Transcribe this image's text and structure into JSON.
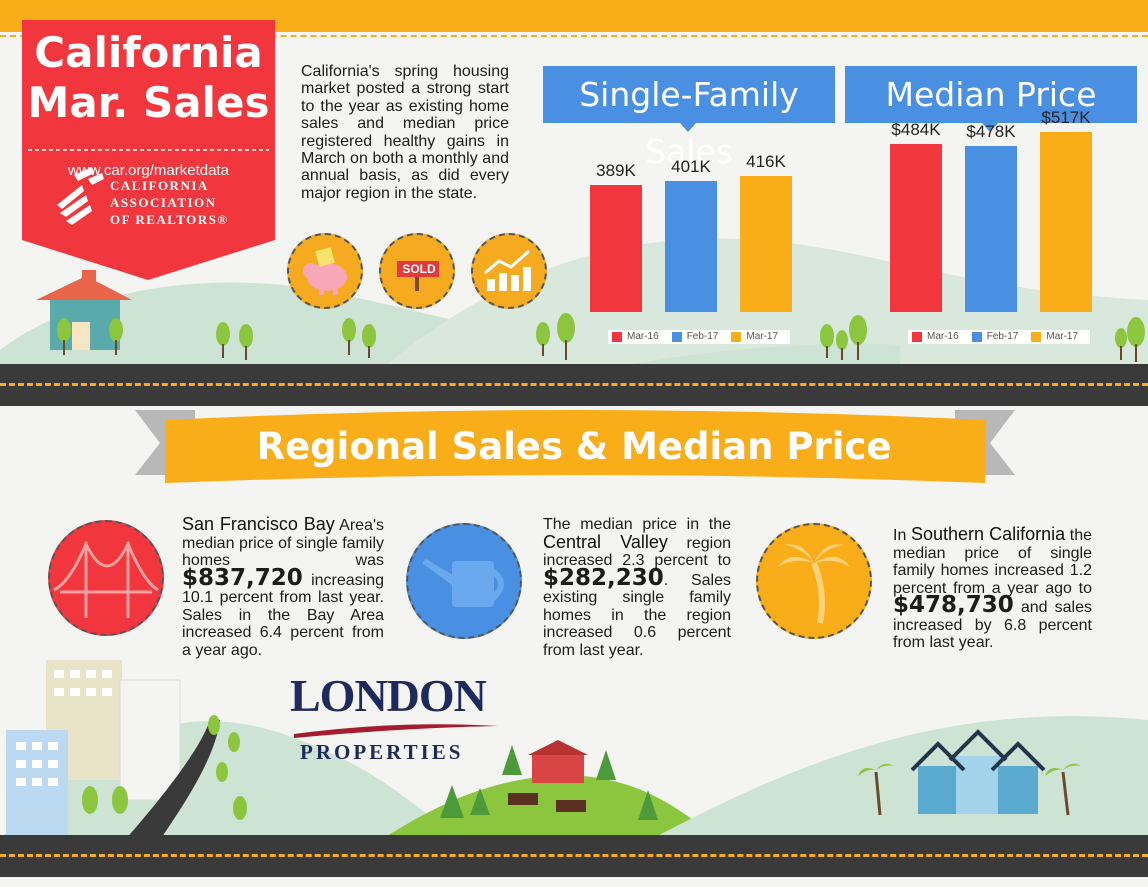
{
  "header": {
    "title_line1": "California",
    "title_line2": "Mar. Sales",
    "url": "www.car.org/marketdata",
    "org_line1": "CALIFORNIA",
    "org_line2": "ASSOCIATION",
    "org_line3": "OF REALTORS®"
  },
  "intro": "California's spring housing market posted a strong start to the year as existing home sales and median price registered healthy gains in March on both a monthly and annual basis, as did every major region in the state.",
  "icons": {
    "sold_sign": "SOLD",
    "names": [
      "piggy-bank-icon",
      "sold-sign-icon",
      "growth-chart-icon",
      "golden-gate-bridge-icon",
      "watering-can-icon",
      "palm-tree-icon"
    ]
  },
  "chart_data": [
    {
      "type": "bar",
      "title": "Single-Family Sales",
      "categories": [
        "Mar-16",
        "Feb-17",
        "Mar-17"
      ],
      "values": [
        389,
        401,
        416
      ],
      "labels": [
        "389K",
        "401K",
        "416K"
      ],
      "colors": [
        "#f2363e",
        "#4a90e2",
        "#f9ad19"
      ],
      "legend": "bottom"
    },
    {
      "type": "bar",
      "title": "Median Price",
      "categories": [
        "Mar-16",
        "Feb-17",
        "Mar-17"
      ],
      "values": [
        484,
        478,
        517
      ],
      "labels": [
        "$484K",
        "$478K",
        "$517K"
      ],
      "colors": [
        "#f2363e",
        "#4a90e2",
        "#f9ad19"
      ],
      "legend": "bottom"
    }
  ],
  "section_title": "Regional Sales & Median Price",
  "regions": {
    "sf": {
      "heading": "San Francisco Bay",
      "text1": "Area's median price of single family homes was",
      "price": "$837,720",
      "text2": "increasing 10.1 percent from last year. Sales in the Bay Area increased 6.4 percent from a year ago."
    },
    "cv": {
      "text1": "The median price in the",
      "heading": "Central Valley",
      "text2": "region increased 2.3 percent to",
      "price": "$282,230",
      "text3": ". Sales existing single family homes in the region increased 0.6 percent from last year."
    },
    "sc": {
      "text1": "In",
      "heading": "Southern California",
      "text2": "the median price of single family homes increased 1.2 percent from a year ago to",
      "price": "$478,730",
      "text3": "and sales increased by 6.8 percent from last year."
    }
  },
  "brand": {
    "name": "LONDON",
    "sub": "PROPERTIES"
  },
  "colors": {
    "orange": "#f9ad19",
    "red": "#f2363e",
    "blue": "#4a90e2",
    "hill": "#cde3d4",
    "road": "#3a3a3a"
  }
}
